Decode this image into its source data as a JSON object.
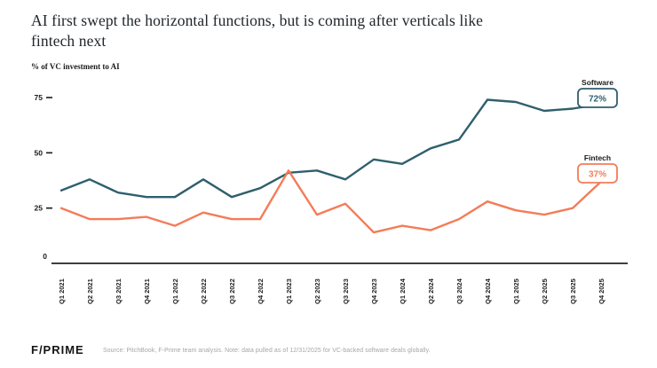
{
  "header": {
    "title_line1": "AI first swept the horizontal functions, but is coming after verticals like",
    "title_line2": "fintech next",
    "axis_title": "% of VC investment to AI"
  },
  "chart_data": {
    "type": "line",
    "title": "AI first swept the horizontal functions, but is coming after verticals like fintech next",
    "ylabel": "% of VC investment to AI",
    "xlabel": "",
    "categories": [
      "Q1 2021",
      "Q2 2021",
      "Q3 2021",
      "Q4 2021",
      "Q1 2022",
      "Q2 2022",
      "Q3 2022",
      "Q4 2022",
      "Q1 2023",
      "Q2 2023",
      "Q3 2023",
      "Q4 2023",
      "Q1 2024",
      "Q2 2024",
      "Q3 2024",
      "Q4 2024",
      "Q1 2025",
      "Q2 2025",
      "Q3 2025",
      "Q4 2025"
    ],
    "series": [
      {
        "name": "Software",
        "color": "#2F5F6E",
        "end_label": "72%",
        "values": [
          33,
          38,
          32,
          30,
          30,
          38,
          30,
          34,
          41,
          42,
          38,
          47,
          45,
          52,
          56,
          74,
          73,
          69,
          70,
          72
        ]
      },
      {
        "name": "Fintech",
        "color": "#F47C58",
        "end_label": "37%",
        "values": [
          25,
          20,
          20,
          21,
          17,
          23,
          20,
          20,
          42,
          22,
          27,
          14,
          17,
          15,
          20,
          28,
          24,
          22,
          25,
          37
        ]
      }
    ],
    "ylim": [
      0,
      80
    ],
    "yticks": [
      0,
      25,
      50,
      75
    ],
    "grid": false,
    "legend_position": "boxed-labels-right"
  },
  "footer": {
    "logo": "F/PRIME",
    "source": "Source: PitchBook, F-Prime team analysis. Note: data pulled as of 12/31/2025 for VC-backed software deals globally."
  }
}
